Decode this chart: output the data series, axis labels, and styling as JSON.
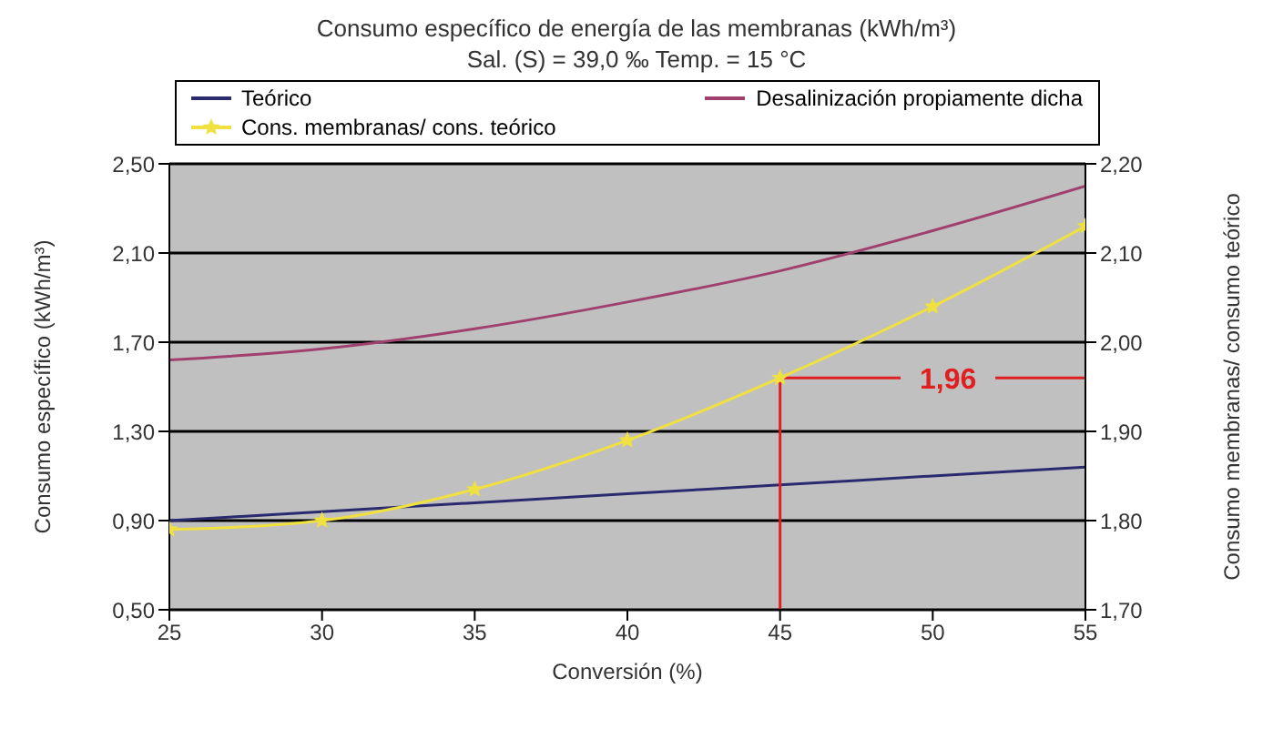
{
  "chart_data": {
    "type": "line",
    "title": "Consumo específico de energía de las membranas (kWh/m³)",
    "subtitle": "Sal. (S) = 39,0 ‰ Temp. = 15 °C",
    "xlabel": "Conversión (%)",
    "ylabel": "Consumo específico (kWh/m³)",
    "y2label": "Consumo membranas/ consumo teórico",
    "x": [
      25,
      30,
      35,
      40,
      45,
      50,
      55
    ],
    "series": [
      {
        "name": "Teórico",
        "color": "#2a2a6e",
        "values": [
          0.9,
          0.94,
          0.98,
          1.02,
          1.06,
          1.1,
          1.14
        ],
        "marker": "none"
      },
      {
        "name": "Desalinización propiamente dicha",
        "color": "#a0406e",
        "values": [
          1.62,
          1.67,
          1.76,
          1.88,
          2.02,
          2.2,
          2.4
        ],
        "marker": "none"
      },
      {
        "name": "Cons. membranas/ cons. teórico",
        "color": "#f0e040",
        "values": [
          1.79,
          1.8,
          1.835,
          1.89,
          1.96,
          2.04,
          2.13
        ],
        "axis": "y2",
        "marker": "star"
      }
    ],
    "xlim": [
      25,
      55
    ],
    "xticks": [
      25,
      30,
      35,
      40,
      45,
      50,
      55
    ],
    "ylim": [
      0.5,
      2.5
    ],
    "yticks": [
      {
        "value": 0.5,
        "label": "0,50"
      },
      {
        "value": 0.9,
        "label": "0,90"
      },
      {
        "value": 1.3,
        "label": "1,30"
      },
      {
        "value": 1.7,
        "label": "1,70"
      },
      {
        "value": 2.1,
        "label": "2,10"
      },
      {
        "value": 2.5,
        "label": "2,50"
      }
    ],
    "y2lim": [
      1.7,
      2.2
    ],
    "y2ticks": [
      {
        "value": 1.7,
        "label": "1,70"
      },
      {
        "value": 1.8,
        "label": "1,80"
      },
      {
        "value": 1.9,
        "label": "1,90"
      },
      {
        "value": 2.0,
        "label": "2,00"
      },
      {
        "value": 2.1,
        "label": "2,10"
      },
      {
        "value": 2.2,
        "label": "2,20"
      }
    ],
    "ref_lines": [
      {
        "axis": "x",
        "value": 45,
        "color": "#e02020"
      },
      {
        "axis": "y2",
        "value": 1.96,
        "label": "1,96",
        "color": "#e02020"
      }
    ],
    "grid": "y",
    "legend": "top"
  }
}
